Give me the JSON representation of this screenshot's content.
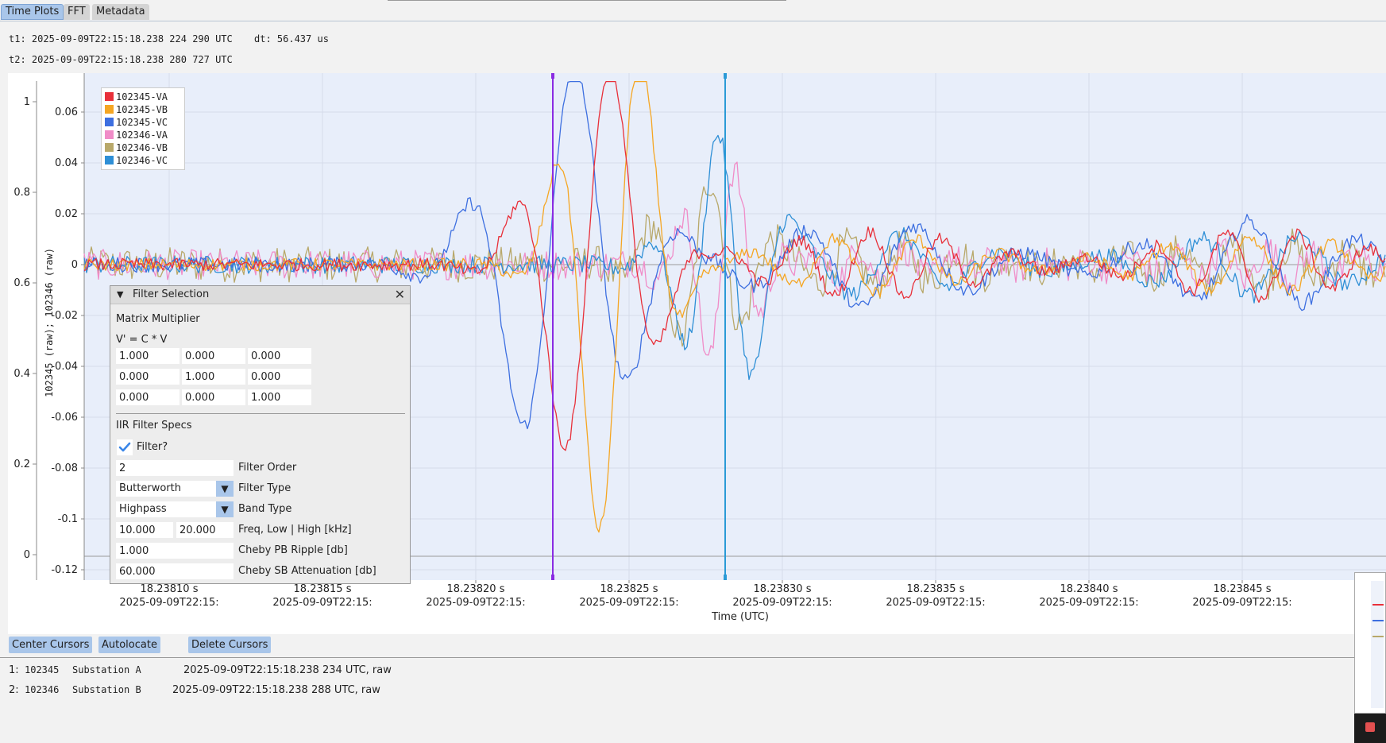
{
  "tabs": [
    "Time Plots",
    "FFT",
    "Metadata"
  ],
  "cursor_info": {
    "t1": "t1: 2025-09-09T22:15:18.238 224 290 UTC",
    "dt": "dt: 56.437 us",
    "t2": "t2: 2025-09-09T22:15:18.238 280 727 UTC"
  },
  "plot": {
    "left_axis_label": "102345 (raw); 102346 (raw)",
    "left_ticks": [
      "1",
      "0.8",
      "0.6",
      "0.4",
      "0.2",
      "0"
    ],
    "inner_ticks": [
      "0.06",
      "0.04",
      "0.02",
      "0",
      "-0.02",
      "-0.04",
      "-0.06",
      "-0.08",
      "-0.1",
      "-0.12"
    ],
    "x_ticks": [
      "18.23810 s",
      "18.23815 s",
      "18.23820 s",
      "18.23825 s",
      "18.23830 s",
      "18.23835 s",
      "18.23840 s",
      "18.23845 s"
    ],
    "x_date": "2025-09-09T22:15:",
    "x_axis_label": "Time (UTC)",
    "legend": [
      {
        "name": "102345-VA",
        "color": "#e8303a"
      },
      {
        "name": "102345-VB",
        "color": "#f5a623"
      },
      {
        "name": "102345-VC",
        "color": "#3d6fe0"
      },
      {
        "name": "102346-VA",
        "color": "#f08cc8"
      },
      {
        "name": "102346-VB",
        "color": "#b8a86a"
      },
      {
        "name": "102346-VC",
        "color": "#2e8fd6"
      }
    ],
    "cursor1_color": "#8a2be2",
    "cursor2_color": "#2a9ad6"
  },
  "filter_panel": {
    "title": "Filter Selection",
    "matrix_heading": "Matrix Multiplier",
    "formula": "V' = C * V",
    "matrix": [
      [
        "1.000",
        "0.000",
        "0.000"
      ],
      [
        "0.000",
        "1.000",
        "0.000"
      ],
      [
        "0.000",
        "0.000",
        "1.000"
      ]
    ],
    "iir_heading": "IIR Filter Specs",
    "filter_check_label": "Filter?",
    "filter_order": "2",
    "filter_order_label": "Filter Order",
    "filter_type": "Butterworth",
    "filter_type_label": "Filter Type",
    "band_type": "Highpass",
    "band_type_label": "Band Type",
    "freq_low": "10.000",
    "freq_high": "20.000",
    "freq_label": "Freq, Low | High [kHz]",
    "cheby_ripple": "1.000",
    "cheby_ripple_label": "Cheby PB Ripple [db]",
    "cheby_atten": "60.000",
    "cheby_atten_label": "Cheby SB Attenuation [db]"
  },
  "buttons": [
    "Center Cursors",
    "Autolocate",
    "Delete Cursors"
  ],
  "rows": [
    {
      "idx": "1:",
      "id": "102345",
      "name": "Substation A",
      "time": "2025-09-09T22:15:18.238 234 UTC, raw"
    },
    {
      "idx": "2:",
      "id": "102346",
      "name": "Substation B",
      "time": "2025-09-09T22:15:18.238 288 UTC, raw"
    }
  ]
}
